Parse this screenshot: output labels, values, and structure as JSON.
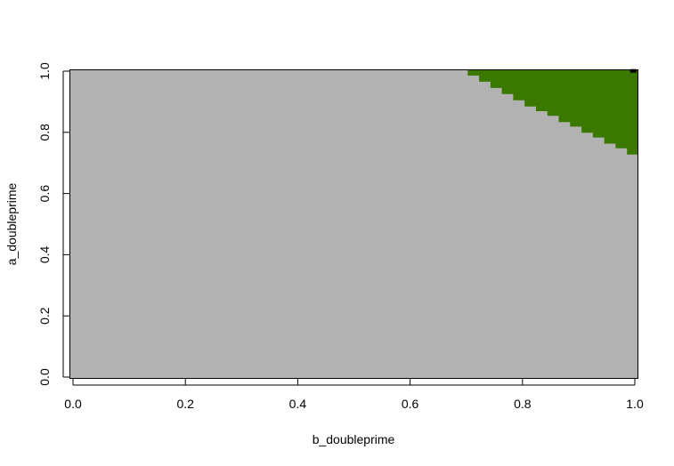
{
  "chart_data": {
    "type": "heatmap",
    "title": "",
    "xlabel": "b_doubleprime",
    "ylabel": "a_doubleprime",
    "xlim": [
      0.0,
      1.0
    ],
    "ylim": [
      0.0,
      1.0
    ],
    "x_ticks": [
      "0.0",
      "0.2",
      "0.4",
      "0.6",
      "0.8",
      "1.0"
    ],
    "y_ticks": [
      "0.0",
      "0.2",
      "0.4",
      "0.6",
      "0.8",
      "1.0"
    ],
    "grid": false,
    "legend": "none",
    "colors": {
      "background_region": "#b2b2b2",
      "upper_right_region": "#3a7800",
      "corner_marker": "#000000"
    },
    "regions": [
      {
        "color_key": "upper_right_region",
        "boundary": [
          {
            "x": 0.685,
            "y": 1.0
          },
          {
            "x": 0.7,
            "y": 0.98
          },
          {
            "x": 0.72,
            "y": 0.96
          },
          {
            "x": 0.74,
            "y": 0.94
          },
          {
            "x": 0.76,
            "y": 0.92
          },
          {
            "x": 0.78,
            "y": 0.9
          },
          {
            "x": 0.8,
            "y": 0.88
          },
          {
            "x": 0.82,
            "y": 0.865
          },
          {
            "x": 0.84,
            "y": 0.85
          },
          {
            "x": 0.86,
            "y": 0.83
          },
          {
            "x": 0.88,
            "y": 0.815
          },
          {
            "x": 0.9,
            "y": 0.795
          },
          {
            "x": 0.92,
            "y": 0.78
          },
          {
            "x": 0.94,
            "y": 0.76
          },
          {
            "x": 0.96,
            "y": 0.745
          },
          {
            "x": 0.98,
            "y": 0.725
          },
          {
            "x": 1.0,
            "y": 0.71
          }
        ]
      }
    ],
    "corner_cell": {
      "x": 0.995,
      "y": 0.995
    }
  }
}
